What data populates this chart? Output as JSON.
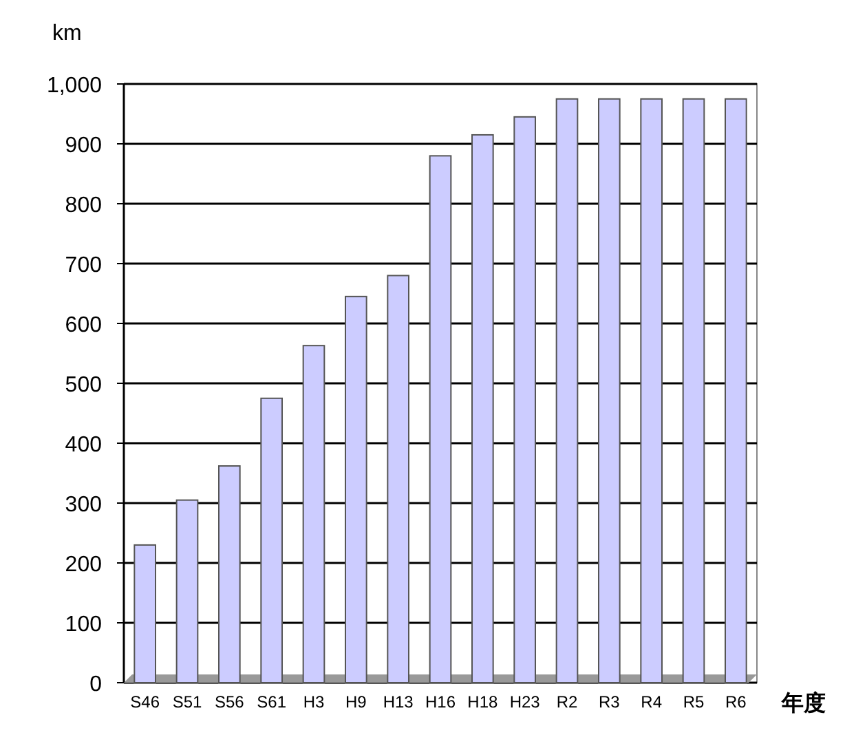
{
  "chart_data": {
    "type": "bar",
    "ylabel": "km",
    "xlabel": "年度",
    "categories": [
      "S46",
      "S51",
      "S56",
      "S61",
      "H3",
      "H9",
      "H13",
      "H16",
      "H18",
      "H23",
      "R2",
      "R3",
      "R4",
      "R5",
      "R6"
    ],
    "values": [
      230,
      305,
      362,
      475,
      563,
      645,
      680,
      880,
      915,
      945,
      975,
      975,
      975,
      975,
      975
    ],
    "color": "#ccccff",
    "ylim": [
      0,
      1000
    ],
    "yticks": [
      0,
      100,
      200,
      300,
      400,
      500,
      600,
      700,
      800,
      900,
      {
        "value": 1000,
        "label": "1,000"
      }
    ],
    "grid": "y"
  }
}
